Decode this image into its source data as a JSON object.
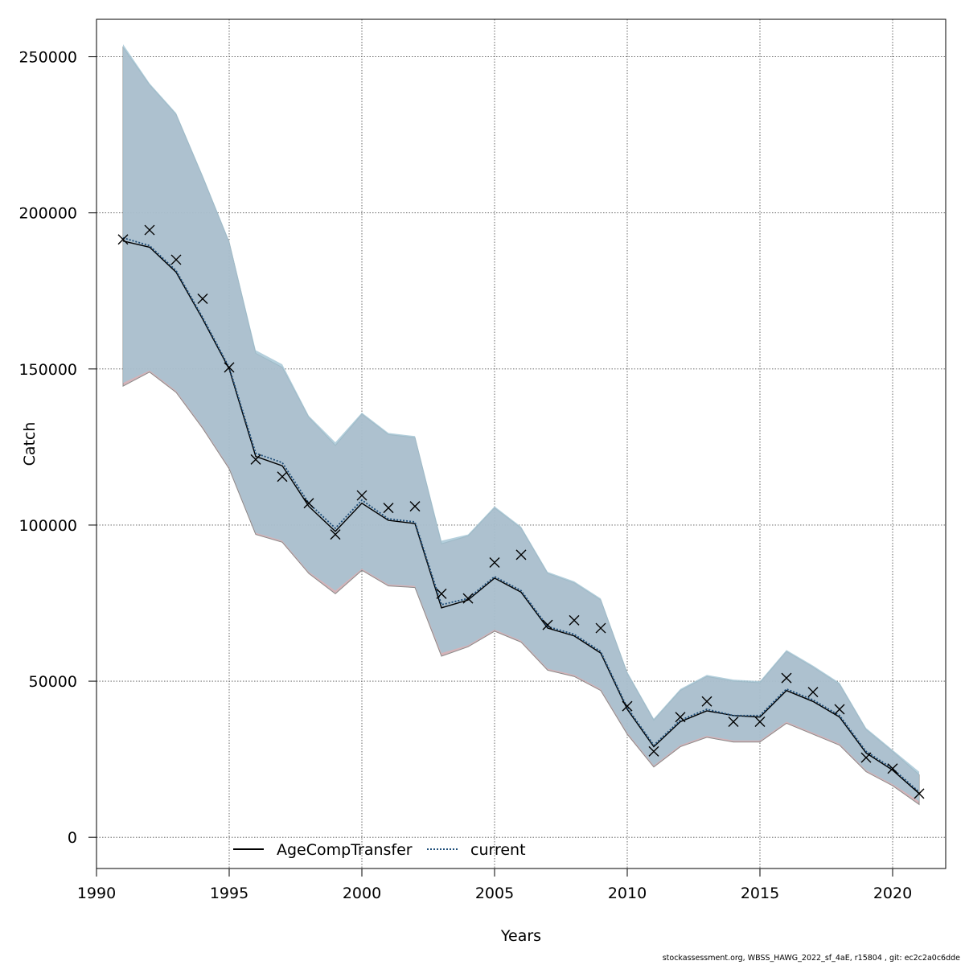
{
  "chart_data": {
    "type": "line",
    "xlabel": "Years",
    "ylabel": "Catch",
    "xlim": [
      1990,
      2022
    ],
    "ylim": [
      -10000,
      262000
    ],
    "xticks": [
      1990,
      1995,
      2000,
      2005,
      2010,
      2015,
      2020
    ],
    "yticks": [
      0,
      50000,
      100000,
      150000,
      200000,
      250000
    ],
    "grid": true,
    "legend_position": "bottom-left",
    "x": [
      1991,
      1992,
      1993,
      1994,
      1995,
      1996,
      1997,
      1998,
      1999,
      2000,
      2001,
      2002,
      2003,
      2004,
      2005,
      2006,
      2007,
      2008,
      2009,
      2010,
      2011,
      2012,
      2013,
      2014,
      2015,
      2016,
      2017,
      2018,
      2019,
      2020,
      2021
    ],
    "series": [
      {
        "name": "AgeCompTransfer",
        "line_style": "solid",
        "color": "#000000",
        "values": [
          191000,
          189000,
          181000,
          166000,
          150000,
          122000,
          119000,
          106000,
          98000,
          107000,
          101500,
          100500,
          73500,
          76000,
          83000,
          78500,
          67000,
          64500,
          59000,
          41000,
          29000,
          37000,
          40500,
          39000,
          38500,
          47000,
          43500,
          38500,
          27000,
          21500,
          14000
        ],
        "ci_lower": [
          144500,
          149000,
          142500,
          131000,
          118000,
          97000,
          94500,
          84500,
          78000,
          85500,
          80500,
          80000,
          58000,
          61000,
          66000,
          62500,
          53500,
          51500,
          47000,
          33000,
          22500,
          29000,
          32000,
          30500,
          30500,
          36500,
          33000,
          29500,
          21000,
          16500,
          10500
        ],
        "ci_upper": [
          253000,
          241000,
          231500,
          211500,
          190500,
          155000,
          150500,
          134500,
          125500,
          135500,
          129000,
          128000,
          94000,
          96500,
          105500,
          99000,
          84500,
          81500,
          76000,
          52500,
          37500,
          47000,
          51500,
          50000,
          49500,
          59500,
          54500,
          49000,
          34500,
          27500,
          20000
        ],
        "band_color": "#c79aa0"
      },
      {
        "name": "current",
        "line_style": "dotted",
        "color": "#1f4e79",
        "values": [
          192000,
          189500,
          181500,
          166500,
          150500,
          123000,
          120000,
          107000,
          99000,
          108000,
          102000,
          101000,
          74500,
          76500,
          83500,
          79000,
          67500,
          65000,
          59500,
          41500,
          29500,
          37500,
          41000,
          39000,
          39000,
          47500,
          44000,
          39000,
          27500,
          22000,
          14500
        ],
        "ci_lower": [
          145500,
          149500,
          143000,
          131500,
          118500,
          97500,
          95000,
          85000,
          79000,
          86000,
          81000,
          80500,
          59000,
          61500,
          66500,
          63000,
          54000,
          52000,
          47500,
          33500,
          23000,
          29500,
          32500,
          31000,
          31000,
          37000,
          33500,
          30000,
          21500,
          17000,
          11500
        ],
        "ci_upper": [
          254000,
          241500,
          232000,
          212000,
          191000,
          156000,
          151500,
          135000,
          126500,
          136000,
          129500,
          128500,
          95000,
          97000,
          106000,
          99500,
          85000,
          82000,
          76500,
          53000,
          38000,
          47500,
          52000,
          50500,
          50000,
          60000,
          55000,
          49500,
          35000,
          28000,
          21000
        ],
        "band_color": "#a4c4d4"
      }
    ],
    "observed": {
      "marker": "x",
      "values": [
        191500,
        194500,
        185000,
        172500,
        150500,
        121000,
        115500,
        107000,
        97000,
        109500,
        105500,
        106000,
        78000,
        76500,
        88000,
        90500,
        68000,
        69500,
        67000,
        42000,
        27500,
        38500,
        43500,
        37000,
        37000,
        51000,
        46500,
        41000,
        25500,
        22000,
        14000
      ]
    }
  },
  "footer": {
    "note": "stockassessment.org, WBSS_HAWG_2022_sf_4aE, r15804 , git: ec2c2a0c6dde"
  }
}
